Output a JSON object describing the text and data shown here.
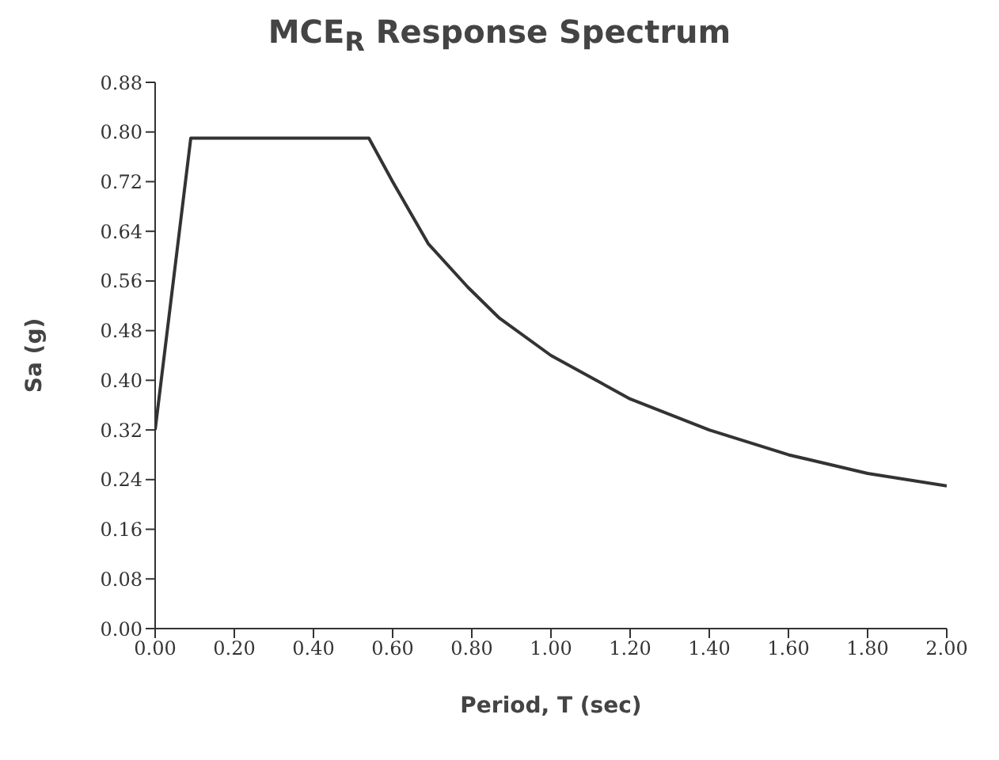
{
  "chart_data": {
    "type": "line",
    "title": "MCE$_{R}$ Response Spectrum",
    "xlabel": "Period, T (sec)",
    "ylabel": "Sa (g)",
    "x": [
      0,
      0.09,
      0.54,
      0.6,
      0.69,
      0.79,
      0.87,
      1.0,
      1.2,
      1.4,
      1.6,
      1.8,
      2.0
    ],
    "series": [
      {
        "color": "#333333",
        "values": [
          0.32,
          0.79,
          0.79,
          0.72,
          0.62,
          0.55,
          0.5,
          0.44,
          0.37,
          0.32,
          0.28,
          0.25,
          0.23
        ]
      }
    ],
    "xlim": [
      0,
      2
    ],
    "xticks": [
      {
        "value": 0,
        "label": "0.00"
      },
      {
        "value": 0.2,
        "label": "0.20"
      },
      {
        "value": 0.4,
        "label": "0.40"
      },
      {
        "value": 0.6,
        "label": "0.60"
      },
      {
        "value": 0.8,
        "label": "0.80"
      },
      {
        "value": 1,
        "label": "1.00"
      },
      {
        "value": 1.2,
        "label": "1.20"
      },
      {
        "value": 1.4,
        "label": "1.40"
      },
      {
        "value": 1.6,
        "label": "1.60"
      },
      {
        "value": 1.8,
        "label": "1.80"
      },
      {
        "value": 2,
        "label": "2.00"
      }
    ],
    "ylim": [
      0,
      0.88
    ],
    "yticks": [
      {
        "value": 0,
        "label": "0.00"
      },
      {
        "value": 0.08,
        "label": "0.08"
      },
      {
        "value": 0.16,
        "label": "0.16"
      },
      {
        "value": 0.24,
        "label": "0.24"
      },
      {
        "value": 0.32,
        "label": "0.32"
      },
      {
        "value": 0.4,
        "label": "0.40"
      },
      {
        "value": 0.48,
        "label": "0.48"
      },
      {
        "value": 0.56,
        "label": "0.56"
      },
      {
        "value": 0.64,
        "label": "0.64"
      },
      {
        "value": 0.72,
        "label": "0.72"
      },
      {
        "value": 0.8,
        "label": "0.80"
      },
      {
        "value": 0.88,
        "label": "0.88"
      }
    ],
    "grid": false,
    "legend": false,
    "marker": "none",
    "line_style": "solid"
  }
}
